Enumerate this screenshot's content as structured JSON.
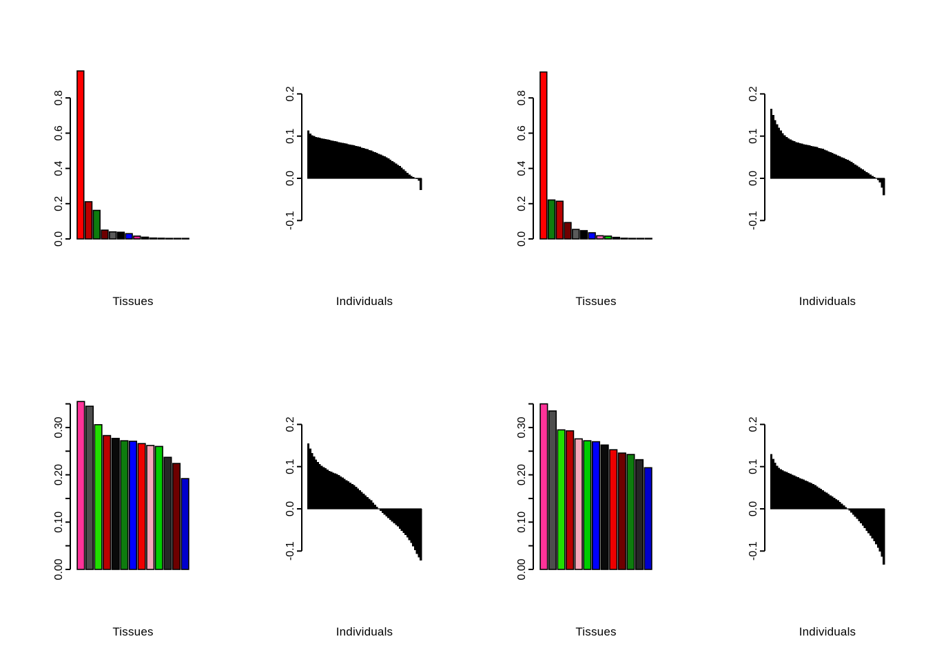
{
  "figure_labels": {
    "tissues": "Tissues",
    "individuals": "Individuals"
  },
  "palette_note_colors": {
    "red": "#FF0000",
    "firebrick": "#BB0000",
    "maroon": "#6E0000",
    "dark_green": "#0E7C0E",
    "bright_green": "#22DD00",
    "green": "#00CC00",
    "gray": "#4D4D4D",
    "dark_gray": "#262626",
    "black": "#000000",
    "blue": "#0000FF",
    "medium_blue": "#0000CD",
    "hot_pink": "#FF3399",
    "magenta": "#E6218E",
    "light_pink": "#F4A7B9",
    "bar_fill_individuals": "#000000"
  },
  "chart_data": [
    {
      "id": "panel-1",
      "type": "bar",
      "variant": "tissues_top",
      "xlabel": "Tissues",
      "ylim": [
        0,
        0.96
      ],
      "axis_ticks": [
        {
          "v": 0.0,
          "label": "0.0"
        },
        {
          "v": 0.2,
          "label": "0.2"
        },
        {
          "v": 0.4,
          "label": "0.4"
        },
        {
          "v": 0.6,
          "label": "0.6"
        },
        {
          "v": 0.8,
          "label": "0.8"
        }
      ],
      "values": [
        0.953,
        0.211,
        0.162,
        0.05,
        0.04,
        0.038,
        0.03,
        0.016,
        0.01,
        0.005,
        0.004,
        0.003,
        0.002,
        0.002
      ],
      "colors": [
        "#FF0000",
        "#BB0000",
        "#0E7C0E",
        "#6E0000",
        "#5A5A5A",
        "#000000",
        "#0000FF",
        "#E6218E",
        "#0A0A0A",
        "#000000",
        "#000000",
        "#000000",
        "#000000",
        "#000000"
      ]
    },
    {
      "id": "panel-2",
      "type": "bar",
      "variant": "individuals",
      "xlabel": "Individuals",
      "ylim": [
        -0.1,
        0.2
      ],
      "axis_ticks": [
        {
          "v": -0.1,
          "label": "-0.1"
        },
        {
          "v": 0.0,
          "label": "0.0"
        },
        {
          "v": 0.1,
          "label": "0.1"
        },
        {
          "v": 0.2,
          "label": "0.2"
        }
      ],
      "bar_color": "#000000",
      "values": [
        0.113,
        0.106,
        0.102,
        0.1,
        0.098,
        0.097,
        0.096,
        0.095,
        0.094,
        0.093,
        0.092,
        0.091,
        0.09,
        0.089,
        0.088,
        0.087,
        0.086,
        0.085,
        0.084,
        0.083,
        0.082,
        0.081,
        0.08,
        0.079,
        0.078,
        0.077,
        0.076,
        0.075,
        0.073,
        0.072,
        0.07,
        0.069,
        0.067,
        0.066,
        0.064,
        0.062,
        0.06,
        0.058,
        0.056,
        0.054,
        0.052,
        0.05,
        0.047,
        0.044,
        0.041,
        0.038,
        0.035,
        0.032,
        0.029,
        0.025,
        0.021,
        0.017,
        0.013,
        0.009,
        0.006,
        0.003,
        0.001,
        -0.002,
        -0.006,
        -0.028
      ]
    },
    {
      "id": "panel-3",
      "type": "bar",
      "variant": "tissues_top",
      "xlabel": "Tissues",
      "ylim": [
        0,
        0.95
      ],
      "axis_ticks": [
        {
          "v": 0.0,
          "label": "0.0"
        },
        {
          "v": 0.2,
          "label": "0.2"
        },
        {
          "v": 0.4,
          "label": "0.4"
        },
        {
          "v": 0.6,
          "label": "0.6"
        },
        {
          "v": 0.8,
          "label": "0.8"
        }
      ],
      "values": [
        0.947,
        0.221,
        0.214,
        0.093,
        0.054,
        0.047,
        0.035,
        0.018,
        0.016,
        0.009,
        0.004,
        0.003,
        0.002,
        0.001
      ],
      "colors": [
        "#FF0000",
        "#0E7C0E",
        "#BB0000",
        "#6E0000",
        "#5A5A5A",
        "#000000",
        "#0000FF",
        "#FF69B4",
        "#00CC00",
        "#101030",
        "#000000",
        "#000000",
        "#000000",
        "#000000"
      ]
    },
    {
      "id": "panel-4",
      "type": "bar",
      "variant": "individuals",
      "xlabel": "Individuals",
      "ylim": [
        -0.1,
        0.2
      ],
      "axis_ticks": [
        {
          "v": -0.1,
          "label": "-0.1"
        },
        {
          "v": 0.0,
          "label": "0.0"
        },
        {
          "v": 0.1,
          "label": "0.1"
        },
        {
          "v": 0.2,
          "label": "0.2"
        }
      ],
      "bar_color": "#000000",
      "values": [
        0.165,
        0.15,
        0.138,
        0.128,
        0.12,
        0.113,
        0.107,
        0.102,
        0.098,
        0.095,
        0.092,
        0.09,
        0.088,
        0.086,
        0.085,
        0.083,
        0.082,
        0.081,
        0.08,
        0.079,
        0.078,
        0.077,
        0.076,
        0.075,
        0.074,
        0.072,
        0.071,
        0.07,
        0.068,
        0.066,
        0.064,
        0.062,
        0.06,
        0.058,
        0.056,
        0.054,
        0.052,
        0.05,
        0.048,
        0.046,
        0.044,
        0.042,
        0.039,
        0.036,
        0.033,
        0.03,
        0.027,
        0.024,
        0.021,
        0.018,
        0.015,
        0.012,
        0.009,
        0.006,
        0.003,
        0.0,
        -0.004,
        -0.01,
        -0.022,
        -0.04
      ]
    },
    {
      "id": "panel-5",
      "type": "bar",
      "variant": "tissues_bottom",
      "xlabel": "Tissues",
      "ylim": [
        0,
        0.36
      ],
      "axis_ticks": [
        {
          "v": 0.0,
          "label": "0.00"
        },
        {
          "v": 0.05,
          "label": ""
        },
        {
          "v": 0.1,
          "label": "0.10"
        },
        {
          "v": 0.15,
          "label": ""
        },
        {
          "v": 0.2,
          "label": "0.20"
        },
        {
          "v": 0.25,
          "label": ""
        },
        {
          "v": 0.3,
          "label": "0.30"
        },
        {
          "v": 0.35,
          "label": ""
        }
      ],
      "values": [
        0.355,
        0.345,
        0.306,
        0.283,
        0.277,
        0.272,
        0.271,
        0.266,
        0.262,
        0.26,
        0.237,
        0.224,
        0.192
      ],
      "colors": [
        "#FF3399",
        "#4D4D4D",
        "#22DD00",
        "#BB0000",
        "#0A0A0A",
        "#0E7C0E",
        "#0000FF",
        "#EE0000",
        "#F4A7B9",
        "#00CC00",
        "#262626",
        "#6E0000",
        "#0000CD"
      ]
    },
    {
      "id": "panel-6",
      "type": "bar",
      "variant": "individuals",
      "xlabel": "Individuals",
      "ylim": [
        -0.13,
        0.2
      ],
      "axis_ticks": [
        {
          "v": -0.1,
          "label": "-0.1"
        },
        {
          "v": 0.0,
          "label": "0.0"
        },
        {
          "v": 0.1,
          "label": "0.1"
        },
        {
          "v": 0.2,
          "label": "0.2"
        }
      ],
      "bar_color": "#000000",
      "values": [
        0.155,
        0.143,
        0.132,
        0.124,
        0.117,
        0.111,
        0.106,
        0.102,
        0.099,
        0.096,
        0.093,
        0.09,
        0.088,
        0.086,
        0.084,
        0.082,
        0.08,
        0.077,
        0.074,
        0.071,
        0.068,
        0.065,
        0.062,
        0.059,
        0.056,
        0.052,
        0.048,
        0.044,
        0.04,
        0.036,
        0.032,
        0.028,
        0.024,
        0.02,
        0.015,
        0.01,
        0.005,
        0.0,
        -0.005,
        -0.01,
        -0.014,
        -0.018,
        -0.022,
        -0.026,
        -0.03,
        -0.034,
        -0.038,
        -0.042,
        -0.047,
        -0.052,
        -0.057,
        -0.062,
        -0.068,
        -0.074,
        -0.081,
        -0.089,
        -0.098,
        -0.107,
        -0.115,
        -0.122
      ]
    },
    {
      "id": "panel-7",
      "type": "bar",
      "variant": "tissues_bottom",
      "xlabel": "Tissues",
      "ylim": [
        0,
        0.36
      ],
      "axis_ticks": [
        {
          "v": 0.0,
          "label": "0.00"
        },
        {
          "v": 0.05,
          "label": ""
        },
        {
          "v": 0.1,
          "label": "0.10"
        },
        {
          "v": 0.15,
          "label": ""
        },
        {
          "v": 0.2,
          "label": "0.20"
        },
        {
          "v": 0.25,
          "label": ""
        },
        {
          "v": 0.3,
          "label": "0.30"
        },
        {
          "v": 0.35,
          "label": ""
        }
      ],
      "values": [
        0.35,
        0.335,
        0.295,
        0.293,
        0.276,
        0.272,
        0.27,
        0.263,
        0.253,
        0.246,
        0.243,
        0.232,
        0.215
      ],
      "colors": [
        "#FF3399",
        "#4D4D4D",
        "#22DD00",
        "#BB0000",
        "#F4A7B9",
        "#00CC00",
        "#0000FF",
        "#0A0A0A",
        "#EE0000",
        "#6E0000",
        "#0E7C0E",
        "#262626",
        "#0000CD"
      ]
    },
    {
      "id": "panel-8",
      "type": "bar",
      "variant": "individuals",
      "xlabel": "Individuals",
      "ylim": [
        -0.14,
        0.2
      ],
      "axis_ticks": [
        {
          "v": -0.1,
          "label": "-0.1"
        },
        {
          "v": 0.0,
          "label": "0.0"
        },
        {
          "v": 0.1,
          "label": "0.1"
        },
        {
          "v": 0.2,
          "label": "0.2"
        }
      ],
      "bar_color": "#000000",
      "values": [
        0.13,
        0.118,
        0.109,
        0.102,
        0.097,
        0.094,
        0.091,
        0.089,
        0.087,
        0.085,
        0.083,
        0.081,
        0.079,
        0.077,
        0.075,
        0.073,
        0.071,
        0.069,
        0.067,
        0.065,
        0.063,
        0.061,
        0.059,
        0.056,
        0.053,
        0.05,
        0.047,
        0.044,
        0.041,
        0.038,
        0.035,
        0.032,
        0.029,
        0.026,
        0.023,
        0.02,
        0.016,
        0.012,
        0.008,
        0.004,
        0.0,
        -0.004,
        -0.009,
        -0.014,
        -0.019,
        -0.024,
        -0.029,
        -0.034,
        -0.04,
        -0.046,
        -0.052,
        -0.058,
        -0.064,
        -0.07,
        -0.077,
        -0.084,
        -0.092,
        -0.101,
        -0.113,
        -0.132
      ]
    }
  ]
}
